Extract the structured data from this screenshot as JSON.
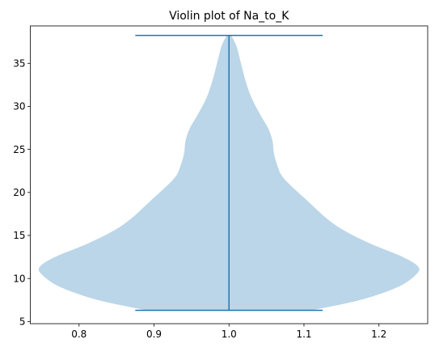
{
  "chart_data": {
    "type": "violin",
    "title": "Violin plot of Na_to_K",
    "xlabel": "",
    "ylabel": "",
    "xlim": [
      0.735,
      1.265
    ],
    "ylim": [
      4.75,
      39.35
    ],
    "x_ticks": [
      0.8,
      0.9,
      1.0,
      1.1,
      1.2
    ],
    "x_tick_labels": [
      "0.8",
      "0.9",
      "1.0",
      "1.1",
      "1.2"
    ],
    "y_ticks": [
      5,
      10,
      15,
      20,
      25,
      30,
      35
    ],
    "y_tick_labels": [
      "5",
      "10",
      "15",
      "20",
      "25",
      "30",
      "35"
    ],
    "grid": false,
    "violin": {
      "position": 1.0,
      "min": 6.3,
      "max": 38.25,
      "cap_halfwidth": 0.125,
      "density_profile": [
        {
          "y": 6.3,
          "hw": 0.11
        },
        {
          "y": 7.5,
          "hw": 0.175
        },
        {
          "y": 9.0,
          "hw": 0.225
        },
        {
          "y": 10.5,
          "hw": 0.25
        },
        {
          "y": 11.4,
          "hw": 0.252
        },
        {
          "y": 12.5,
          "hw": 0.232
        },
        {
          "y": 14.0,
          "hw": 0.19
        },
        {
          "y": 15.5,
          "hw": 0.155
        },
        {
          "y": 17.0,
          "hw": 0.13
        },
        {
          "y": 19.0,
          "hw": 0.105
        },
        {
          "y": 21.0,
          "hw": 0.08
        },
        {
          "y": 22.0,
          "hw": 0.07
        },
        {
          "y": 23.0,
          "hw": 0.065
        },
        {
          "y": 24.5,
          "hw": 0.06
        },
        {
          "y": 26.0,
          "hw": 0.058
        },
        {
          "y": 27.5,
          "hw": 0.052
        },
        {
          "y": 29.0,
          "hw": 0.042
        },
        {
          "y": 31.0,
          "hw": 0.03
        },
        {
          "y": 33.0,
          "hw": 0.022
        },
        {
          "y": 35.0,
          "hw": 0.016
        },
        {
          "y": 37.0,
          "hw": 0.01
        },
        {
          "y": 38.25,
          "hw": 0.003
        }
      ]
    },
    "colors": {
      "body_fill": "#1f77b4",
      "body_opacity": 0.3,
      "lines": "#1f77b4",
      "axes": "#000000"
    }
  }
}
